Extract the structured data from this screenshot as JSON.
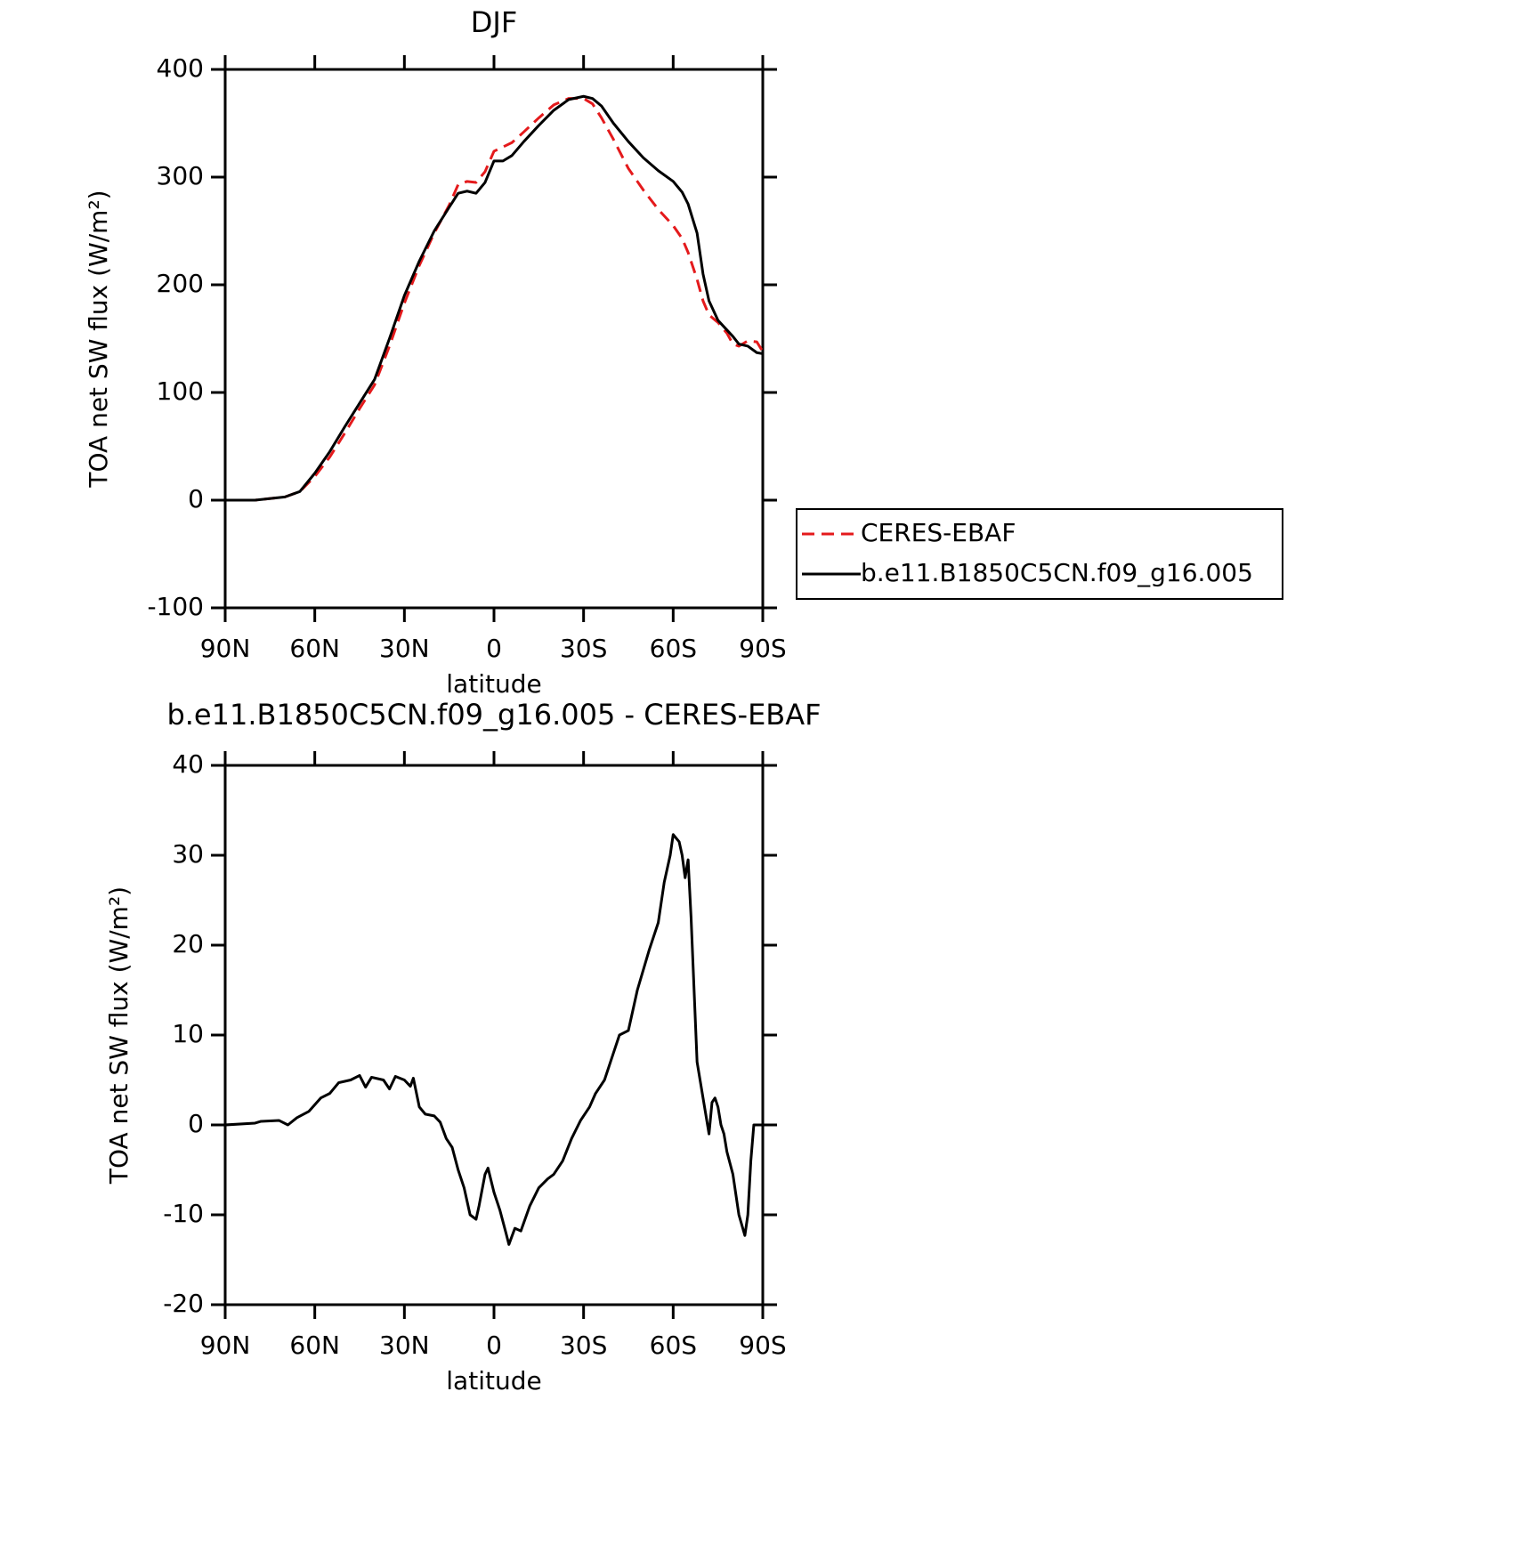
{
  "chart_data": [
    {
      "type": "line",
      "title": "DJF",
      "xlabel": "latitude",
      "ylabel": "TOA net SW flux (W/m²)",
      "x": [
        90,
        80,
        70,
        65,
        60,
        55,
        50,
        45,
        40,
        35,
        30,
        25,
        20,
        15,
        12,
        9,
        6,
        3,
        0,
        -3,
        -6,
        -10,
        -15,
        -20,
        -25,
        -30,
        -33,
        -36,
        -40,
        -45,
        -50,
        -55,
        -60,
        -63,
        -65,
        -68,
        -70,
        -72,
        -75,
        -78,
        -80,
        -82,
        -85,
        -88,
        -90
      ],
      "series": [
        {
          "name": "CERES-EBAF",
          "color": "#e41a1c",
          "style": "dashed",
          "values": [
            0,
            0,
            3,
            8,
            22,
            40,
            62,
            85,
            107,
            143,
            183,
            218,
            248,
            274,
            293,
            296,
            295,
            305,
            324,
            328,
            332,
            342,
            355,
            367,
            373,
            373,
            368,
            355,
            335,
            308,
            288,
            270,
            255,
            243,
            230,
            205,
            185,
            172,
            165,
            155,
            145,
            143,
            148,
            147,
            138
          ]
        },
        {
          "name": "b.e11.B1850C5CN.f09_g16.005",
          "color": "#000000",
          "style": "solid",
          "values": [
            0,
            0,
            3,
            8,
            25,
            45,
            68,
            90,
            112,
            150,
            190,
            222,
            250,
            272,
            285,
            287,
            285,
            295,
            315,
            315,
            320,
            333,
            348,
            362,
            372,
            375,
            373,
            366,
            350,
            333,
            318,
            306,
            296,
            286,
            275,
            248,
            210,
            185,
            167,
            158,
            152,
            145,
            143,
            137,
            136
          ]
        }
      ],
      "xlim": [
        90,
        -90
      ],
      "xticks": [
        {
          "value": 90,
          "label": "90N"
        },
        {
          "value": 60,
          "label": "60N"
        },
        {
          "value": 30,
          "label": "30N"
        },
        0,
        {
          "value": -30,
          "label": "30S"
        },
        {
          "value": -60,
          "label": "60S"
        },
        {
          "value": -90,
          "label": "90S"
        }
      ],
      "ylim": [
        -100,
        400
      ],
      "yticks": [
        -100,
        0,
        100,
        200,
        300,
        400
      ],
      "legend": "right"
    },
    {
      "type": "line",
      "title": "b.e11.B1850C5CN.f09_g16.005 - CERES-EBAF",
      "xlabel": "latitude",
      "ylabel": "TOA net SW flux (W/m²)",
      "x": [
        90,
        80,
        78,
        72,
        69,
        66,
        62,
        58,
        55,
        52,
        48,
        45,
        43,
        41,
        37,
        35,
        33,
        30,
        28,
        27,
        25,
        23,
        20,
        18,
        16,
        14,
        12,
        10,
        8,
        6,
        5,
        3,
        2,
        0,
        -2,
        -4,
        -5,
        -7,
        -9,
        -12,
        -15,
        -18,
        -20,
        -23,
        -26,
        -29,
        -32,
        -34,
        -37,
        -40,
        -42,
        -45,
        -48,
        -52,
        -55,
        -57,
        -59,
        -60,
        -62,
        -63,
        -64,
        -65,
        -66,
        -67,
        -68,
        -69,
        -70,
        -72,
        -73,
        -74,
        -75,
        -76,
        -77,
        -78,
        -80,
        -82,
        -84,
        -85,
        -86,
        -87,
        -90
      ],
      "series": [
        {
          "color": "#000000",
          "style": "solid",
          "values": [
            0,
            0.2,
            0.4,
            0.5,
            0,
            0.8,
            1.5,
            3,
            3.5,
            4.7,
            5,
            5.5,
            4.2,
            5.3,
            5,
            4,
            5.4,
            5,
            4.3,
            5.2,
            2,
            1.2,
            1,
            0.3,
            -1.5,
            -2.5,
            -5,
            -7,
            -10,
            -10.5,
            -9,
            -5.5,
            -4.8,
            -7.5,
            -9.5,
            -12,
            -13.3,
            -11.5,
            -11.8,
            -9,
            -7,
            -6,
            -5.5,
            -4,
            -1.5,
            0.5,
            2,
            3.5,
            5,
            8,
            10,
            10.5,
            15,
            19.5,
            22.5,
            27,
            30,
            32.3,
            31.5,
            30,
            27.5,
            29.5,
            23,
            15,
            7,
            5,
            3,
            -1,
            2.5,
            3,
            2,
            0,
            -1,
            -3,
            -5.5,
            -10,
            -12.3,
            -10,
            -4,
            0,
            0
          ]
        }
      ],
      "xlim": [
        90,
        -90
      ],
      "xticks": [
        {
          "value": 90,
          "label": "90N"
        },
        {
          "value": 60,
          "label": "60N"
        },
        {
          "value": 30,
          "label": "30N"
        },
        0,
        {
          "value": -30,
          "label": "30S"
        },
        {
          "value": -60,
          "label": "60S"
        },
        {
          "value": -90,
          "label": "90S"
        }
      ],
      "ylim": [
        -20,
        40
      ],
      "yticks": [
        -20,
        -10,
        0,
        10,
        20,
        30,
        40
      ]
    }
  ]
}
